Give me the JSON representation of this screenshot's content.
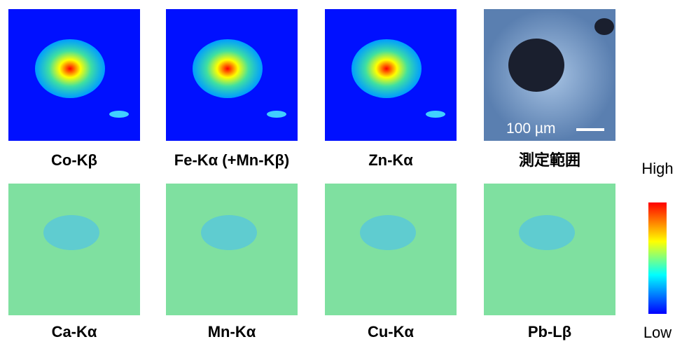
{
  "panels": [
    {
      "label": "Co-Kβ"
    },
    {
      "label": "Fe-Kα (+Mn-Kβ)"
    },
    {
      "label": "Zn-Kα"
    },
    {
      "label": "測定範囲"
    },
    {
      "label": "Ca-Kα"
    },
    {
      "label": "Mn-Kα"
    },
    {
      "label": "Cu-Kα"
    },
    {
      "label": "Pb-Lβ"
    }
  ],
  "scale_bar": "100 µm",
  "colorbar": {
    "high": "High",
    "low": "Low"
  }
}
